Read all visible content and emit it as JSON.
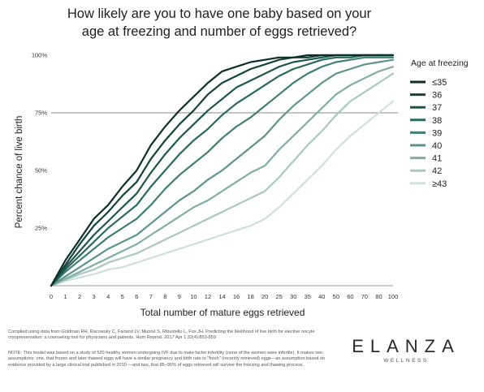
{
  "chart_data": {
    "type": "line",
    "title_lines": [
      "How likely are you to have one baby based on your",
      "age at freezing and number of eggs retrieved?"
    ],
    "xlabel": "Total number of mature eggs retrieved",
    "ylabel": "Percent chance of live birth",
    "x": [
      "0",
      "1",
      "2",
      "3",
      "4",
      "5",
      "6",
      "7",
      "8",
      "9",
      "10",
      "12",
      "14",
      "16",
      "18",
      "20",
      "25",
      "30",
      "35",
      "40",
      "50",
      "60",
      "70",
      "80",
      "100"
    ],
    "yticks": [
      "25%",
      "50%",
      "75%",
      "100%"
    ],
    "ylim": [
      0,
      100
    ],
    "reference_line": 75,
    "legend_title": "Age at freezing",
    "legend_position": "right",
    "series": [
      {
        "name": "≤35",
        "color": "#0d2f2a",
        "values": [
          0,
          11,
          20,
          29,
          35,
          43,
          50,
          61,
          69,
          76,
          82,
          88,
          93,
          95,
          97,
          98,
          99,
          99,
          100,
          100,
          100,
          100,
          100,
          100,
          100
        ]
      },
      {
        "name": "36",
        "color": "#15433b",
        "values": [
          0,
          9,
          18,
          26,
          32,
          39,
          45,
          55,
          63,
          70,
          76,
          83,
          88,
          91,
          94,
          96,
          98,
          99,
          99,
          100,
          100,
          100,
          100,
          100,
          100
        ]
      },
      {
        "name": "37",
        "color": "#1e564c",
        "values": [
          0,
          8,
          15,
          22,
          28,
          34,
          40,
          49,
          57,
          64,
          70,
          76,
          81,
          86,
          89,
          92,
          95,
          97,
          98,
          99,
          100,
          100,
          100,
          100,
          100
        ]
      },
      {
        "name": "38",
        "color": "#2a6a5e",
        "values": [
          0,
          7,
          13,
          19,
          25,
          30,
          35,
          43,
          50,
          57,
          63,
          68,
          74,
          79,
          83,
          87,
          91,
          94,
          96,
          98,
          99,
          99,
          100,
          100,
          100
        ]
      },
      {
        "name": "39",
        "color": "#3f7f72",
        "values": [
          0,
          6,
          11,
          16,
          21,
          25,
          29,
          35,
          42,
          48,
          53,
          58,
          64,
          69,
          73,
          78,
          83,
          88,
          92,
          95,
          97,
          98,
          99,
          99,
          99
        ]
      },
      {
        "name": "40",
        "color": "#5c958a",
        "values": [
          0,
          4,
          8,
          12,
          16,
          19,
          22,
          27,
          32,
          37,
          41,
          46,
          50,
          55,
          60,
          65,
          72,
          78,
          83,
          88,
          92,
          94,
          96,
          97,
          98
        ]
      },
      {
        "name": "41",
        "color": "#80aea5",
        "values": [
          0,
          3,
          6,
          9,
          12,
          15,
          18,
          22,
          26,
          30,
          34,
          37,
          41,
          45,
          49,
          52,
          59,
          65,
          71,
          77,
          83,
          87,
          90,
          93,
          95
        ]
      },
      {
        "name": "42",
        "color": "#a9c8c1",
        "values": [
          0,
          2.5,
          5,
          7,
          10,
          12,
          14,
          17,
          20,
          23,
          26,
          29,
          32,
          35,
          38,
          41,
          47,
          54,
          61,
          67,
          74,
          80,
          84,
          88,
          92
        ]
      },
      {
        "name": "≥43",
        "color": "#cfe0dc",
        "values": [
          0,
          2,
          3.5,
          5,
          7,
          8,
          10,
          12,
          14,
          16,
          18,
          20,
          22,
          24,
          26,
          29,
          34,
          40,
          46,
          52,
          59,
          65,
          70,
          75,
          80
        ]
      }
    ]
  },
  "footnotes": {
    "note_1": "Compiled using data from Goldman RH, Racowsky C, Farland LV, Munné S, Ribustello L, Fox JH. Predicting the likelihood of live birth for elective oocyte cryopreservation: a counseling tool for physicians and patients. Hum Reprod. 2017 Apr 1;32(4):853-859",
    "note_2": "NOTE: This model was based on a study of 520 healthy women undergoing IVF due to male-factor infertility (none of the women were infertile). It makes two assumptions: one, that frozen and later thawed eggs will have a similar pregnancy and birth rate to \"fresh\" (recently retrieved) eggs—an assumption based on evidence provided by a large clinical trial published in 2010 —and two, that 85–95% of eggs retrieved will survive the freezing and thawing process."
  },
  "brand": {
    "name": "ELANZA",
    "sub": "WELLNESS"
  }
}
